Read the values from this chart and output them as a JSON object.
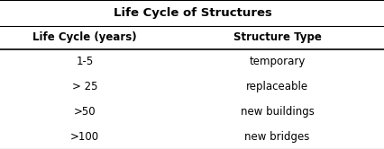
{
  "title": "Life Cycle of Structures",
  "col1_header": "Life Cycle (years)",
  "col2_header": "Structure Type",
  "rows": [
    [
      "1-5",
      "temporary"
    ],
    [
      "> 25",
      "replaceable"
    ],
    [
      ">50",
      "new buildings"
    ],
    [
      ">100",
      "new bridges"
    ]
  ],
  "background_color": "#ffffff",
  "line_color": "#000000",
  "title_fontsize": 9.5,
  "header_fontsize": 8.5,
  "data_fontsize": 8.5,
  "col_split": 0.44,
  "fig_width": 4.27,
  "fig_height": 1.66,
  "dpi": 100
}
